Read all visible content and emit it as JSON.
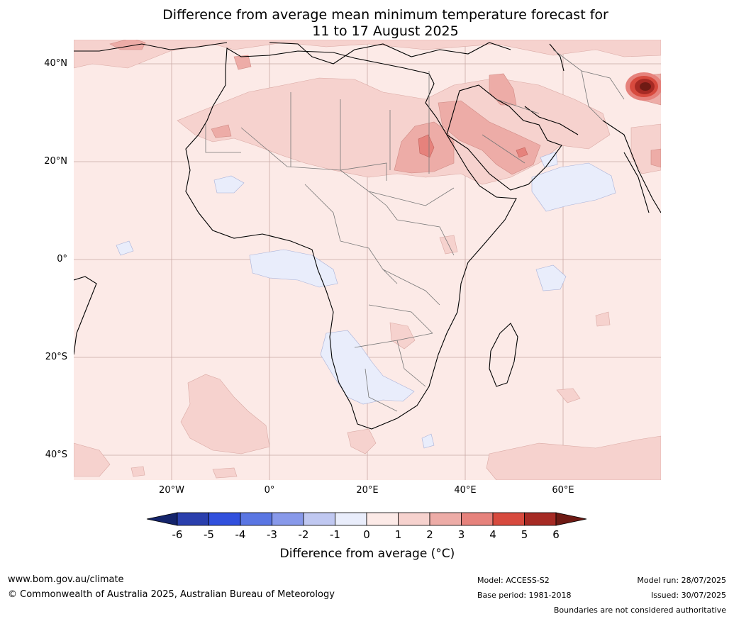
{
  "title": {
    "line1": "Difference from average mean minimum temperature forecast for",
    "line2": "11 to 17 August 2025"
  },
  "axes": {
    "lat_labels": [
      "40°N",
      "20°N",
      "0°",
      "20°S",
      "40°S"
    ],
    "lon_labels": [
      "20°W",
      "0°",
      "20°E",
      "40°E",
      "60°E"
    ]
  },
  "map": {
    "projection": "plate carree",
    "lon_range": [
      -40,
      80
    ],
    "lat_range": [
      -45,
      45
    ],
    "gridlines": true,
    "background_anomaly_class": "0 to 1",
    "features": [
      {
        "name": "strong warm anomaly",
        "location": "Karakoram / Western Himalaya",
        "value_class": "5 to 6+"
      },
      {
        "name": "warm anomaly",
        "location": "Sudan / Egypt / Red Sea",
        "value_class": "3 to 4"
      },
      {
        "name": "warm anomaly",
        "location": "Arabian Peninsula / Iraq",
        "value_class": "2 to 4"
      },
      {
        "name": "cool anomaly",
        "location": "Namibia / Botswana",
        "value_class": "-1 to 0"
      },
      {
        "name": "cool anomaly",
        "location": "Arabian Sea",
        "value_class": "-1 to 0"
      },
      {
        "name": "cool anomaly",
        "location": "Gulf of Guinea",
        "value_class": "-1 to 0"
      }
    ]
  },
  "colorbar": {
    "label": "Difference from average (°C)",
    "ticks": [
      "-6",
      "-5",
      "-4",
      "-3",
      "-2",
      "-1",
      "0",
      "1",
      "2",
      "3",
      "4",
      "5",
      "6"
    ],
    "colors": [
      "#14246b",
      "#2a3fad",
      "#3150dd",
      "#5a76e3",
      "#8899ea",
      "#c0c8f1",
      "#e9edfb",
      "#fceae7",
      "#f6d2ce",
      "#edaca7",
      "#e6827c",
      "#d74a3e",
      "#a62a24",
      "#6e1a14"
    ]
  },
  "footer": {
    "website": "www.bom.gov.au/climate",
    "copyright": "© Commonwealth of Australia 2025, Australian Bureau of Meteorology",
    "model": "Model: ACCESS-S2",
    "base_period": "Base period: 1981-2018",
    "model_run": "Model run: 28/07/2025",
    "issued": "Issued: 30/07/2025",
    "disclaimer": "Boundaries are not considered authoritative"
  }
}
